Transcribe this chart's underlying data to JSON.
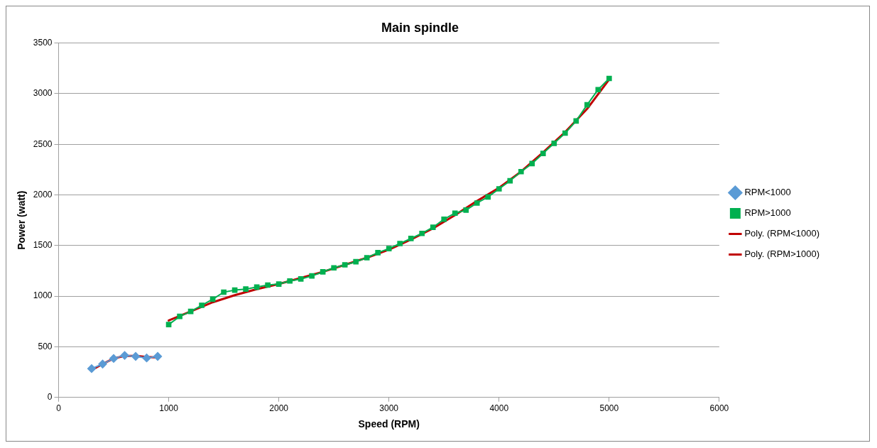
{
  "chart_data": {
    "type": "line",
    "title": "Main spindle",
    "xlabel": "Speed (RPM)",
    "ylabel": "Power (watt)",
    "xlim": [
      0,
      6000
    ],
    "xticks": [
      0,
      1000,
      2000,
      3000,
      4000,
      5000,
      6000
    ],
    "ylim": [
      0,
      3500
    ],
    "yticks": [
      0,
      500,
      1000,
      1500,
      2000,
      2500,
      3000,
      3500
    ],
    "grid": "y",
    "legend": "right",
    "line_style": "solid",
    "series": [
      {
        "name": "RPM<1000",
        "color": "#5b9bd5",
        "marker": "diamond",
        "x": [
          300,
          400,
          500,
          600,
          700,
          800,
          900
        ],
        "values": [
          285,
          330,
          385,
          415,
          405,
          390,
          405
        ]
      },
      {
        "name": "RPM>1000",
        "color": "#00b050",
        "marker": "square",
        "x": [
          1000,
          1100,
          1200,
          1300,
          1400,
          1500,
          1600,
          1700,
          1800,
          1900,
          2000,
          2100,
          2200,
          2300,
          2400,
          2500,
          2600,
          2700,
          2800,
          2900,
          3000,
          3100,
          3200,
          3300,
          3400,
          3500,
          3600,
          3700,
          3800,
          3900,
          4000,
          4100,
          4200,
          4300,
          4400,
          4500,
          4600,
          4700,
          4800,
          4900,
          5000
        ],
        "values": [
          720,
          800,
          850,
          910,
          970,
          1040,
          1060,
          1070,
          1090,
          1110,
          1120,
          1150,
          1170,
          1200,
          1240,
          1280,
          1310,
          1340,
          1380,
          1430,
          1470,
          1520,
          1570,
          1620,
          1680,
          1760,
          1820,
          1850,
          1920,
          1980,
          2060,
          2140,
          2230,
          2310,
          2410,
          2510,
          2610,
          2730,
          2890,
          3040,
          3150
        ]
      },
      {
        "name": "Poly. (RPM<1000)",
        "color": "#c00000",
        "x": [
          300,
          400,
          500,
          600,
          700,
          800,
          900
        ],
        "values": [
          270,
          330,
          385,
          410,
          410,
          400,
          395
        ]
      },
      {
        "name": "Poly. (RPM>1000)",
        "color": "#c00000",
        "x": [
          1000,
          1200,
          1400,
          1600,
          1800,
          2000,
          2200,
          2400,
          2600,
          2800,
          3000,
          3200,
          3400,
          3600,
          3800,
          4000,
          4200,
          4400,
          4600,
          4800,
          5000
        ],
        "values": [
          760,
          850,
          940,
          1010,
          1070,
          1120,
          1180,
          1240,
          1310,
          1380,
          1460,
          1560,
          1670,
          1800,
          1940,
          2070,
          2230,
          2420,
          2620,
          2850,
          3140
        ]
      }
    ]
  }
}
